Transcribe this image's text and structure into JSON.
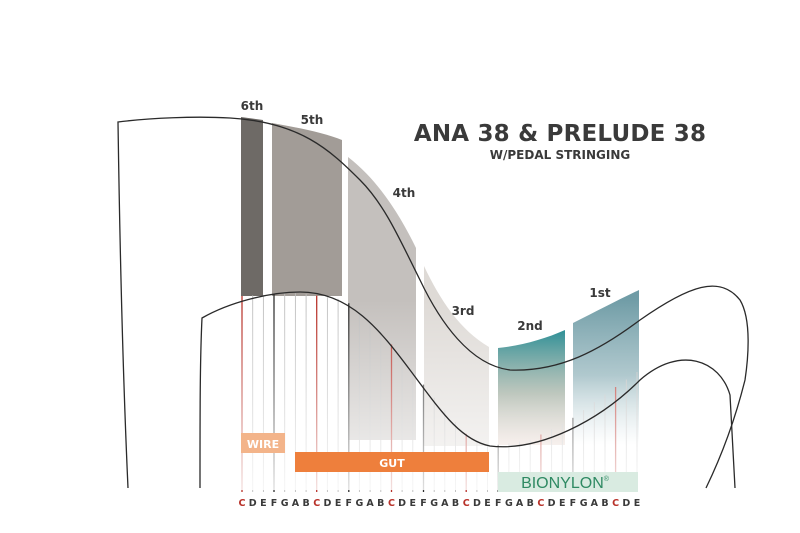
{
  "title": {
    "main": "ANA 38 & PRELUDE 38",
    "sub": "W/PEDAL STRINGING"
  },
  "octaves": [
    {
      "label": "6th",
      "color": "#6e6a66"
    },
    {
      "label": "5th",
      "color": "#a29c97"
    },
    {
      "label": "4th",
      "color": "#c4c0bd"
    },
    {
      "label": "3rd",
      "color": "#dedad6"
    },
    {
      "label": "2nd",
      "color": "#0f7f87"
    },
    {
      "label": "1st",
      "color": "#6e9ba5"
    }
  ],
  "materials": [
    {
      "label": "WIRE",
      "color": "#f3b48a"
    },
    {
      "label": "GUT",
      "color": "#ee7f3c"
    },
    {
      "label": "BIONYLON",
      "mark": "®",
      "color": "#2f8a63",
      "bg": "#d9ebe1"
    }
  ],
  "notes": [
    "C",
    "D",
    "E",
    "F",
    "G",
    "A",
    "B",
    "C",
    "D",
    "E",
    "F",
    "G",
    "A",
    "B",
    "C",
    "D",
    "E",
    "F",
    "G",
    "A",
    "B",
    "C",
    "D",
    "E",
    "F",
    "G",
    "A",
    "B",
    "C",
    "D",
    "E",
    "F",
    "G",
    "A",
    "B",
    "C",
    "D",
    "E"
  ],
  "colors": {
    "c_string": "#b8322a",
    "f_string": "#2e2e2e",
    "string": "#bdbdbd",
    "frame": "#2a2a2a",
    "note_text": "#3a3a3a"
  }
}
